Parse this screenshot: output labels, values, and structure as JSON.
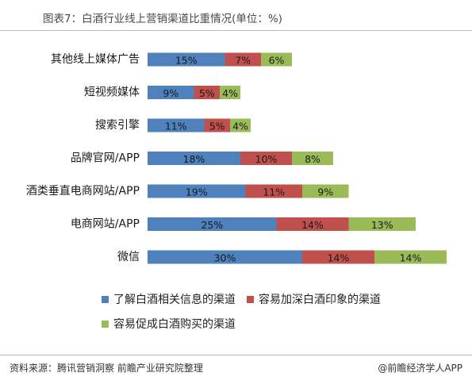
{
  "header": {
    "title": "图表7：白酒行业线上营销渠道比重情况(单位：%)"
  },
  "footer": {
    "source": "资料来源：腾讯营销洞察 前瞻产业研究院整理",
    "brand": "@前瞻经济学人APP"
  },
  "chart_data": {
    "type": "bar",
    "orientation": "horizontal",
    "stacked": true,
    "title": "图表7：白酒行业线上营销渠道比重情况(单位：%)",
    "categories": [
      "其他线上媒体广告",
      "短视频媒体",
      "搜索引擎",
      "品牌官网/APP",
      "酒类垂直电商网站/APP",
      "电商网站/APP",
      "微信"
    ],
    "series": [
      {
        "name": "了解白酒相关信息的渠道",
        "color": "#4f81bd",
        "values": [
          15,
          9,
          11,
          18,
          19,
          25,
          30
        ],
        "labels": [
          "15%",
          "9%",
          "11%",
          "18%",
          "19%",
          "25%",
          "30%"
        ]
      },
      {
        "name": "容易加深白酒印象的渠道",
        "color": "#c0504d",
        "values": [
          7,
          5,
          5,
          10,
          11,
          14,
          14
        ],
        "labels": [
          "7%",
          "5%",
          "5%",
          "10%",
          "11%",
          "14%",
          "14%"
        ]
      },
      {
        "name": "容易促成白酒购买的渠道",
        "color": "#9bbb59",
        "values": [
          6,
          4,
          4,
          8,
          9,
          13,
          14
        ],
        "labels": [
          "6%",
          "4%",
          "4%",
          "8%",
          "9%",
          "13%",
          "14%"
        ]
      }
    ],
    "xlim": [
      0,
      65
    ],
    "legend_position": "bottom",
    "grid": false
  }
}
